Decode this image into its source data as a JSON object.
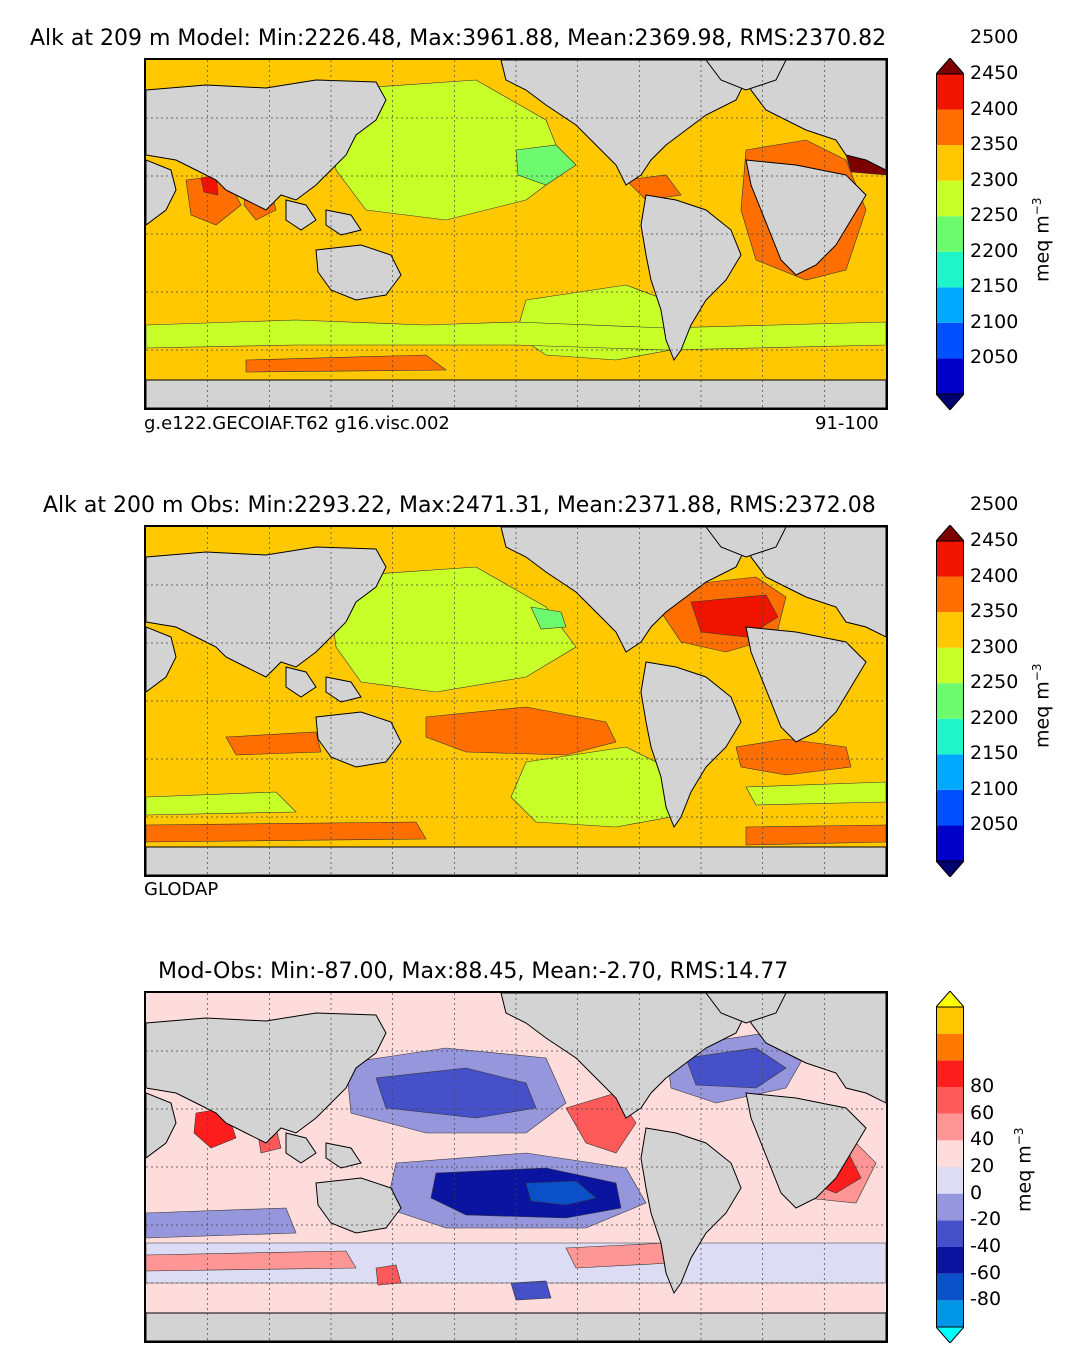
{
  "panels": [
    {
      "title": "Alk at 209 m Model: Min:2226.48, Max:3961.88, Mean:2369.98, RMS:2370.82",
      "left_label": "g.e122.GECOIAF.T62 g16.visc.002",
      "right_label": "91-100",
      "unit": "meq m",
      "unit_exp": "−3",
      "levels": [
        "2050",
        "2100",
        "2150",
        "2200",
        "2250",
        "2300",
        "2350",
        "2400",
        "2450",
        "2500"
      ],
      "colors": [
        "#00006e",
        "#0000c8",
        "#0050ff",
        "#00a8ff",
        "#1ef5c8",
        "#6efa6e",
        "#c8ff28",
        "#ffc800",
        "#ff6e00",
        "#f01400",
        "#7d0000"
      ]
    },
    {
      "title": "Alk at 200 m Obs: Min:2293.22, Max:2471.31, Mean:2371.88, RMS:2372.08",
      "left_label": "GLODAP",
      "right_label": "",
      "unit": "meq m",
      "unit_exp": "−3",
      "levels": [
        "2050",
        "2100",
        "2150",
        "2200",
        "2250",
        "2300",
        "2350",
        "2400",
        "2450",
        "2500"
      ],
      "colors": [
        "#00006e",
        "#0000c8",
        "#0050ff",
        "#00a8ff",
        "#1ef5c8",
        "#6efa6e",
        "#c8ff28",
        "#ffc800",
        "#ff6e00",
        "#f01400",
        "#7d0000"
      ]
    },
    {
      "title": "Mod-Obs: Min:-87.00, Max:88.45, Mean:-2.70, RMS:14.77",
      "left_label": "",
      "right_label": "",
      "unit": "meq m",
      "unit_exp": "−3",
      "levels": [
        "-80",
        "-60",
        "-40",
        "-20",
        "0",
        "20",
        "40",
        "60",
        "80"
      ],
      "colors": [
        "#00ffff",
        "#0096e6",
        "#0a50c8",
        "#0a14a0",
        "#4650c8",
        "#9696dc",
        "#dcdcf5",
        "#ffdcdc",
        "#ff9696",
        "#ff5a5a",
        "#ff1e1e",
        "#ff7800",
        "#ffc800",
        "#ffff00"
      ]
    }
  ],
  "chart_data": [
    {
      "type": "heatmap",
      "title": "Alk at 209 m Model: Min:2226.48, Max:3961.88, Mean:2369.98, RMS:2370.82",
      "colorbar_levels": [
        2050,
        2100,
        2150,
        2200,
        2250,
        2300,
        2350,
        2400,
        2450,
        2500
      ],
      "colorbar_label": "meq m^-3",
      "stats": {
        "min": 2226.48,
        "max": 3961.88,
        "mean": 2369.98,
        "rms": 2370.82
      }
    },
    {
      "type": "heatmap",
      "title": "Alk at 200 m Obs: Min:2293.22, Max:2471.31, Mean:2371.88, RMS:2372.08",
      "colorbar_levels": [
        2050,
        2100,
        2150,
        2200,
        2250,
        2300,
        2350,
        2400,
        2450,
        2500
      ],
      "colorbar_label": "meq m^-3",
      "stats": {
        "min": 2293.22,
        "max": 2471.31,
        "mean": 2371.88,
        "rms": 2372.08
      }
    },
    {
      "type": "heatmap",
      "title": "Mod-Obs: Min:-87.00, Max:88.45, Mean:-2.70, RMS:14.77",
      "colorbar_levels": [
        -80,
        -60,
        -40,
        -20,
        0,
        20,
        40,
        60,
        80
      ],
      "colorbar_label": "meq m^-3",
      "stats": {
        "min": -87.0,
        "max": 88.45,
        "mean": -2.7,
        "rms": 14.77
      }
    }
  ]
}
